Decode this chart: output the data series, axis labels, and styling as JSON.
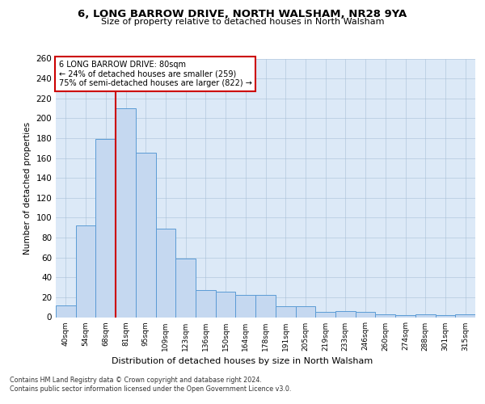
{
  "title1": "6, LONG BARROW DRIVE, NORTH WALSHAM, NR28 9YA",
  "title2": "Size of property relative to detached houses in North Walsham",
  "xlabel": "Distribution of detached houses by size in North Walsham",
  "ylabel": "Number of detached properties",
  "categories": [
    "40sqm",
    "54sqm",
    "68sqm",
    "81sqm",
    "95sqm",
    "109sqm",
    "123sqm",
    "136sqm",
    "150sqm",
    "164sqm",
    "178sqm",
    "191sqm",
    "205sqm",
    "219sqm",
    "233sqm",
    "246sqm",
    "260sqm",
    "274sqm",
    "288sqm",
    "301sqm",
    "315sqm"
  ],
  "values": [
    12,
    92,
    179,
    210,
    165,
    89,
    59,
    27,
    26,
    22,
    22,
    11,
    11,
    5,
    6,
    5,
    3,
    2,
    3,
    2,
    3
  ],
  "bar_color": "#c5d8f0",
  "bar_edge_color": "#5b9bd5",
  "annotation_title": "6 LONG BARROW DRIVE: 80sqm",
  "annotation_line1": "← 24% of detached houses are smaller (259)",
  "annotation_line2": "75% of semi-detached houses are larger (822) →",
  "annotation_box_color": "#ffffff",
  "annotation_box_edge": "#cc0000",
  "vline_color": "#cc0000",
  "vline_x": 2.5,
  "ylim": [
    0,
    260
  ],
  "yticks": [
    0,
    20,
    40,
    60,
    80,
    100,
    120,
    140,
    160,
    180,
    200,
    220,
    240,
    260
  ],
  "footer1": "Contains HM Land Registry data © Crown copyright and database right 2024.",
  "footer2": "Contains public sector information licensed under the Open Government Licence v3.0.",
  "bg_color": "#ffffff",
  "plot_bg_color": "#dce9f7"
}
